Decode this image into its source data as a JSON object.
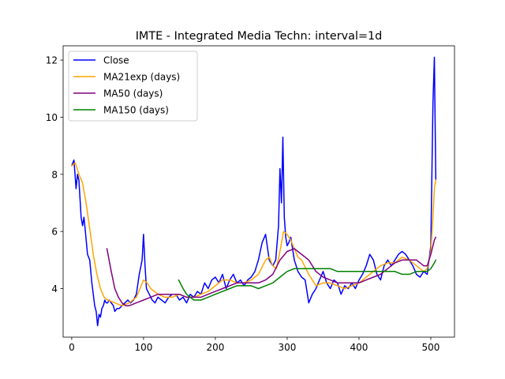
{
  "chart_data": {
    "type": "line",
    "title": "IMTE - Integrated Media Techn: interval=1d",
    "xlabel": "",
    "ylabel": "",
    "xlim": [
      -12,
      533
    ],
    "ylim": [
      2.3,
      12.5
    ],
    "xticks": [
      0,
      100,
      200,
      300,
      400,
      500
    ],
    "yticks": [
      4,
      6,
      8,
      10,
      12
    ],
    "grid": false,
    "legend_position": "upper left",
    "series": [
      {
        "name": "Close",
        "color": "#0000ff",
        "x": [
          0,
          3,
          6,
          8,
          10,
          13,
          15,
          17,
          19,
          22,
          25,
          28,
          30,
          32,
          34,
          36,
          38,
          40,
          42,
          44,
          46,
          48,
          50,
          52,
          55,
          58,
          60,
          63,
          66,
          70,
          74,
          78,
          82,
          86,
          90,
          94,
          98,
          100,
          102,
          104,
          108,
          112,
          116,
          120,
          125,
          130,
          135,
          140,
          145,
          150,
          155,
          160,
          165,
          170,
          175,
          180,
          185,
          190,
          195,
          200,
          205,
          210,
          215,
          220,
          225,
          230,
          235,
          240,
          245,
          250,
          255,
          260,
          265,
          270,
          275,
          280,
          284,
          288,
          290,
          292,
          294,
          296,
          298,
          300,
          302,
          305,
          310,
          315,
          320,
          325,
          330,
          335,
          340,
          345,
          350,
          355,
          360,
          365,
          370,
          375,
          380,
          385,
          390,
          395,
          400,
          405,
          410,
          415,
          420,
          425,
          430,
          435,
          440,
          445,
          450,
          455,
          460,
          465,
          470,
          475,
          480,
          485,
          490,
          495,
          500,
          503,
          505,
          507
        ],
        "y": [
          8.3,
          8.5,
          7.5,
          8.0,
          7.8,
          6.5,
          6.2,
          6.5,
          6.0,
          5.2,
          5.0,
          4.2,
          3.8,
          3.4,
          3.2,
          2.7,
          3.1,
          3.0,
          3.3,
          3.4,
          3.6,
          3.5,
          3.5,
          3.6,
          3.5,
          3.4,
          3.2,
          3.3,
          3.3,
          3.4,
          3.5,
          3.6,
          3.5,
          3.6,
          3.8,
          4.5,
          5.0,
          5.9,
          4.8,
          4.0,
          3.8,
          3.6,
          3.5,
          3.7,
          3.6,
          3.5,
          3.7,
          3.8,
          3.8,
          3.6,
          3.7,
          3.5,
          3.8,
          3.7,
          3.9,
          3.8,
          4.2,
          4.0,
          4.3,
          4.4,
          4.2,
          4.5,
          4.0,
          4.3,
          4.5,
          4.2,
          4.3,
          4.1,
          4.3,
          4.4,
          4.6,
          5.0,
          5.6,
          5.9,
          5.0,
          4.8,
          5.0,
          6.2,
          8.2,
          7.0,
          9.3,
          6.5,
          5.8,
          5.5,
          5.6,
          5.8,
          5.0,
          4.6,
          4.4,
          4.3,
          3.5,
          3.8,
          4.0,
          4.3,
          4.6,
          4.2,
          4.0,
          4.3,
          4.2,
          3.8,
          4.1,
          4.0,
          4.2,
          4.0,
          4.3,
          4.5,
          4.8,
          5.2,
          5.0,
          4.5,
          4.3,
          4.8,
          5.0,
          4.8,
          5.0,
          5.2,
          5.3,
          5.2,
          5.0,
          4.8,
          4.5,
          4.4,
          4.6,
          4.5,
          5.5,
          10.5,
          12.1,
          7.8
        ]
      },
      {
        "name": "MA21exp (days)",
        "color": "#ffa500",
        "x": [
          0,
          5,
          10,
          15,
          20,
          25,
          30,
          35,
          40,
          45,
          50,
          60,
          70,
          80,
          90,
          95,
          100,
          105,
          110,
          120,
          130,
          140,
          150,
          160,
          170,
          180,
          190,
          200,
          210,
          220,
          230,
          240,
          250,
          260,
          270,
          275,
          280,
          285,
          290,
          295,
          300,
          305,
          310,
          315,
          320,
          330,
          340,
          350,
          360,
          370,
          380,
          390,
          400,
          410,
          420,
          430,
          440,
          450,
          460,
          470,
          480,
          490,
          495,
          500,
          503,
          505,
          507
        ],
        "y": [
          8.3,
          8.4,
          8.0,
          7.7,
          7.0,
          6.1,
          5.2,
          4.5,
          4.0,
          3.7,
          3.6,
          3.5,
          3.4,
          3.5,
          3.7,
          4.0,
          4.3,
          4.2,
          4.0,
          3.8,
          3.7,
          3.7,
          3.8,
          3.7,
          3.7,
          3.8,
          3.9,
          4.1,
          4.3,
          4.3,
          4.2,
          4.2,
          4.3,
          4.5,
          5.0,
          5.1,
          4.8,
          4.7,
          5.3,
          6.0,
          5.9,
          5.7,
          5.4,
          5.1,
          5.0,
          4.5,
          4.1,
          4.2,
          4.2,
          4.1,
          4.0,
          4.1,
          4.2,
          4.4,
          4.6,
          4.8,
          4.9,
          4.9,
          5.1,
          5.0,
          4.8,
          4.6,
          4.7,
          5.3,
          6.5,
          7.5,
          7.8
        ]
      },
      {
        "name": "MA50 (days)",
        "color": "#800080",
        "x": [
          49,
          55,
          60,
          65,
          70,
          75,
          80,
          90,
          100,
          110,
          120,
          130,
          140,
          150,
          160,
          170,
          180,
          190,
          200,
          210,
          220,
          230,
          240,
          250,
          260,
          270,
          280,
          290,
          300,
          310,
          320,
          330,
          340,
          350,
          360,
          370,
          380,
          390,
          400,
          410,
          420,
          430,
          440,
          450,
          460,
          470,
          480,
          490,
          495,
          500,
          505,
          507
        ],
        "y": [
          5.4,
          4.6,
          4.0,
          3.7,
          3.5,
          3.4,
          3.4,
          3.5,
          3.6,
          3.7,
          3.8,
          3.8,
          3.8,
          3.8,
          3.7,
          3.7,
          3.7,
          3.8,
          3.9,
          4.0,
          4.1,
          4.2,
          4.2,
          4.2,
          4.2,
          4.3,
          4.5,
          5.0,
          5.3,
          5.4,
          5.2,
          5.0,
          4.6,
          4.4,
          4.3,
          4.2,
          4.2,
          4.2,
          4.2,
          4.3,
          4.4,
          4.5,
          4.7,
          4.9,
          5.0,
          5.0,
          5.0,
          4.8,
          4.8,
          5.2,
          5.7,
          5.8
        ]
      },
      {
        "name": "MA150 (days)",
        "color": "#008000",
        "x": [
          149,
          155,
          160,
          165,
          170,
          180,
          190,
          200,
          210,
          220,
          230,
          240,
          250,
          260,
          270,
          280,
          290,
          300,
          310,
          320,
          330,
          340,
          350,
          360,
          370,
          380,
          390,
          400,
          410,
          420,
          430,
          440,
          450,
          460,
          470,
          480,
          490,
          495,
          500,
          505,
          507
        ],
        "y": [
          4.3,
          4.0,
          3.8,
          3.7,
          3.6,
          3.6,
          3.7,
          3.8,
          3.9,
          4.0,
          4.1,
          4.1,
          4.1,
          4.0,
          4.1,
          4.2,
          4.4,
          4.6,
          4.7,
          4.7,
          4.7,
          4.7,
          4.7,
          4.7,
          4.6,
          4.6,
          4.6,
          4.6,
          4.6,
          4.6,
          4.6,
          4.6,
          4.6,
          4.5,
          4.5,
          4.6,
          4.6,
          4.6,
          4.7,
          4.9,
          5.0
        ]
      }
    ]
  }
}
